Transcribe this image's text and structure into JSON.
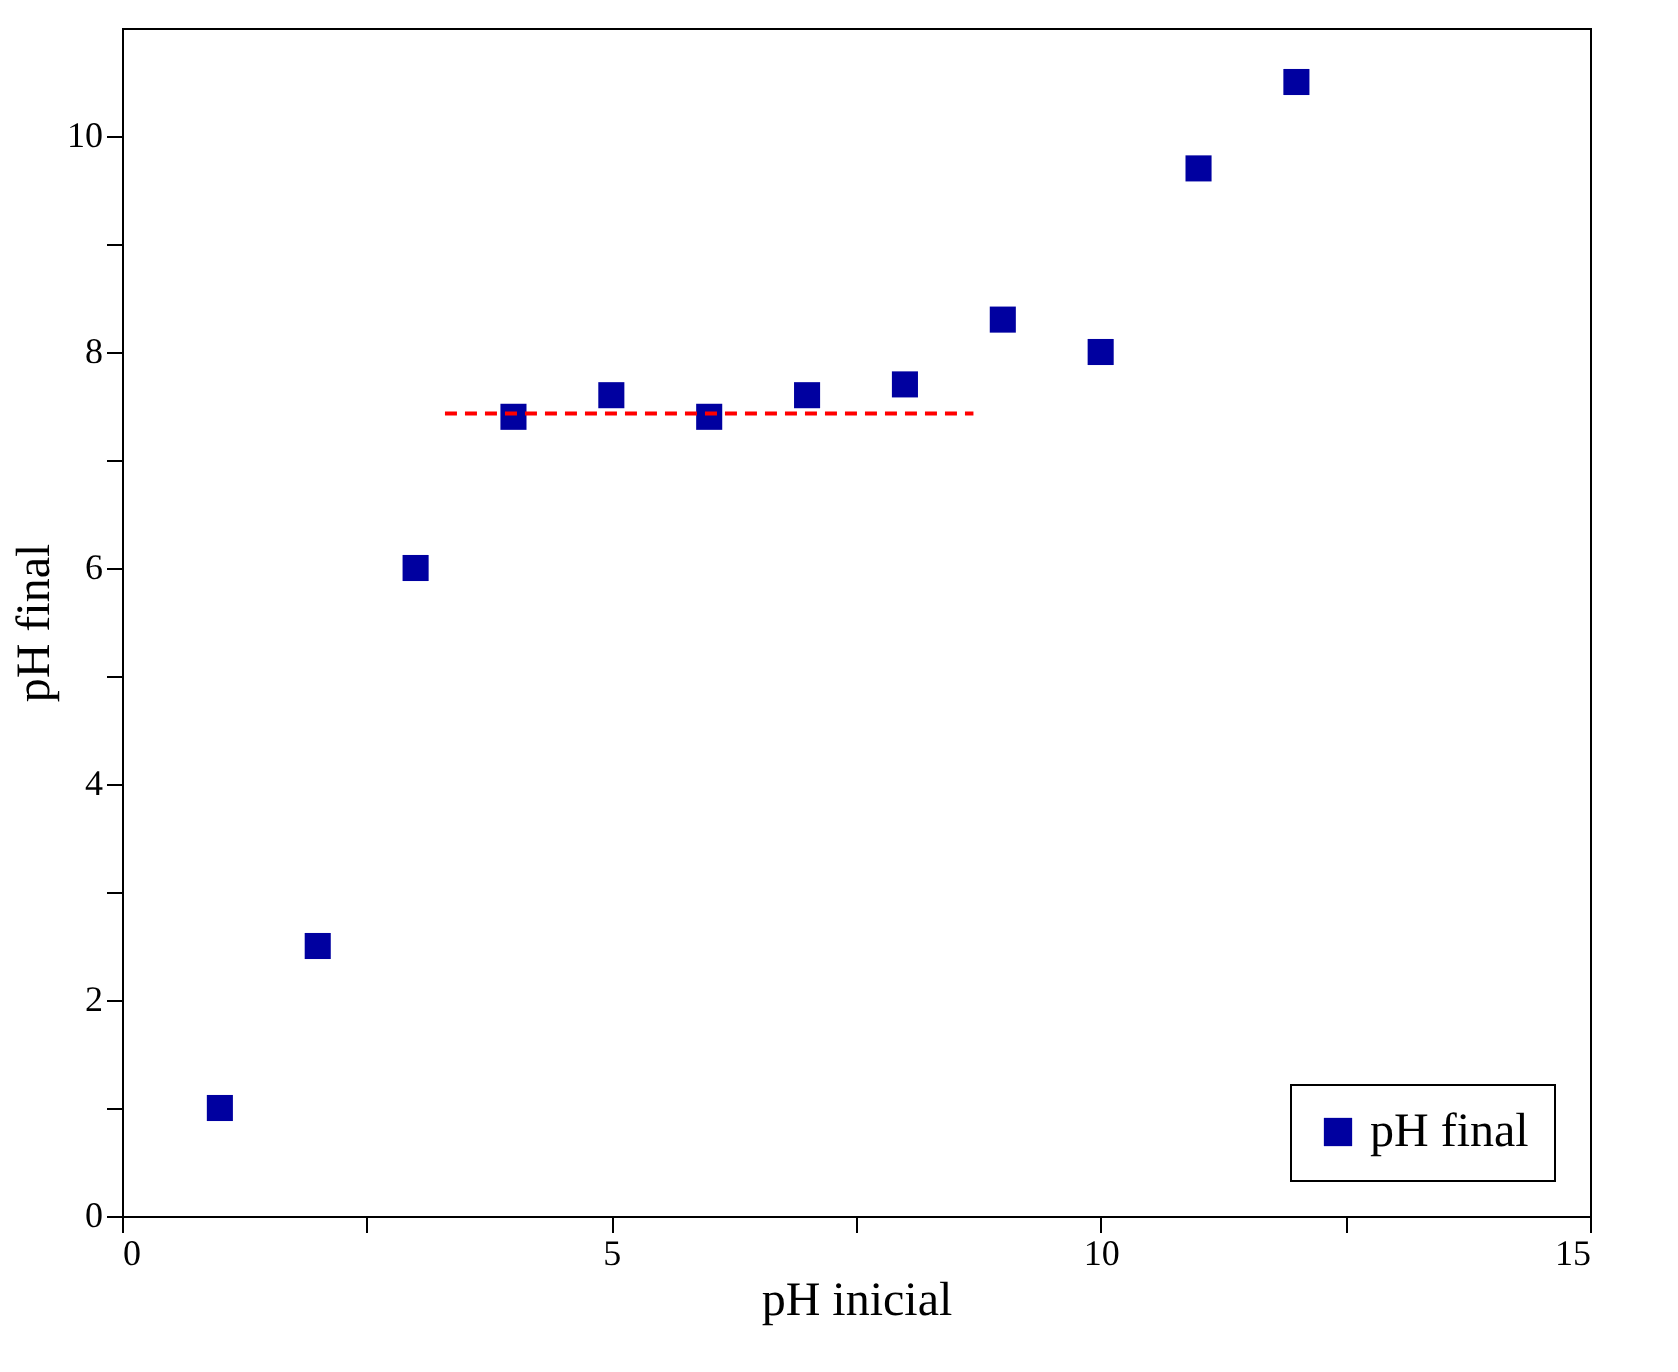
{
  "chart_data": {
    "type": "scatter",
    "xlabel": "pH inicial",
    "ylabel": "pH final",
    "x": [
      1,
      2,
      3,
      4,
      5,
      6,
      7,
      8,
      9,
      10,
      11,
      12
    ],
    "series": [
      {
        "name": "pH final",
        "color": "#0000a0",
        "marker": "square",
        "values": [
          1.0,
          2.5,
          6.0,
          7.4,
          7.6,
          7.4,
          7.6,
          7.7,
          8.3,
          8.0,
          9.7,
          10.5
        ]
      },
      {
        "type": "line",
        "color": "#ff0000",
        "line_style": "dashed",
        "x": [
          3.3,
          8.7
        ],
        "values": [
          7.43,
          7.43
        ]
      }
    ],
    "legend": "bottom right",
    "grid": false,
    "xlim": [
      0,
      15
    ],
    "xticks": [
      0,
      {
        "value": 2.5,
        "label": null
      },
      5,
      {
        "value": 7.5,
        "label": null
      },
      10,
      {
        "value": 12.5,
        "label": null
      },
      15
    ],
    "ylim": [
      0,
      11
    ],
    "yticks": [
      0,
      {
        "value": 1,
        "label": null
      },
      2,
      {
        "value": 3,
        "label": null
      },
      4,
      {
        "value": 5,
        "label": null
      },
      6,
      {
        "value": 7,
        "label": null
      },
      8,
      {
        "value": 9,
        "label": null
      },
      10
    ]
  }
}
